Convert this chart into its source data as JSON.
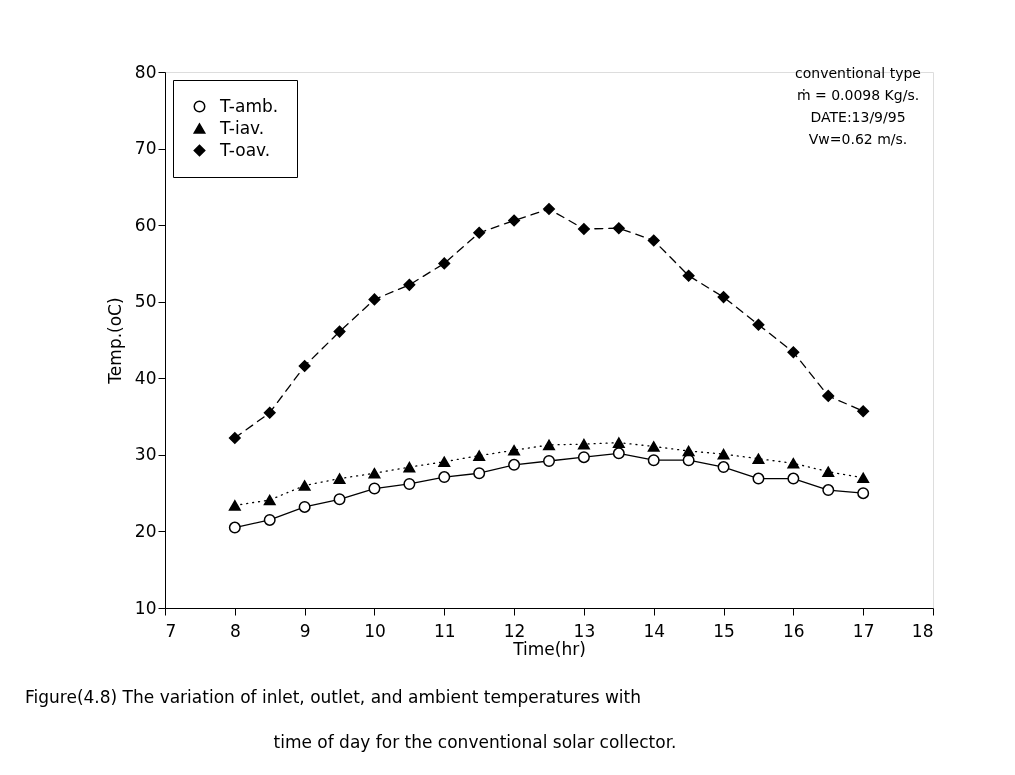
{
  "chart_data": {
    "type": "line",
    "xlabel": "Time(hr)",
    "ylabel": "Temp.(oC)",
    "x": [
      8,
      8.5,
      9,
      9.5,
      10,
      10.5,
      11,
      11.5,
      12,
      12.5,
      13,
      13.5,
      14,
      14.5,
      15,
      15.5,
      16,
      16.5,
      17
    ],
    "series": [
      {
        "name": "T-amb.",
        "color": "#000000",
        "marker": "circle",
        "line_style": "solid",
        "values": [
          20.5,
          21.5,
          23.2,
          24.2,
          25.6,
          26.2,
          27.1,
          27.6,
          28.7,
          29.2,
          29.7,
          30.2,
          29.3,
          29.3,
          28.4,
          26.9,
          26.9,
          25.4,
          25.0
        ]
      },
      {
        "name": "T-iav.",
        "color": "#000000",
        "marker": "triangle",
        "line_style": "dotted",
        "values": [
          23.4,
          24.1,
          26.0,
          26.9,
          27.6,
          28.4,
          29.1,
          29.9,
          30.6,
          31.3,
          31.4,
          31.6,
          31.1,
          30.5,
          30.1,
          29.5,
          28.9,
          27.8,
          27.0
        ]
      },
      {
        "name": "T-oav.",
        "color": "#000000",
        "marker": "diamond",
        "line_style": "dashed",
        "values": [
          32.2,
          35.5,
          41.6,
          46.1,
          50.3,
          52.2,
          55.0,
          59.0,
          60.6,
          62.1,
          59.5,
          59.6,
          58.0,
          53.4,
          50.6,
          47.0,
          43.4,
          37.7,
          35.7
        ]
      }
    ],
    "xlim": [
      7,
      18
    ],
    "xticks": [
      7,
      8,
      9,
      10,
      11,
      12,
      13,
      14,
      15,
      16,
      17,
      18
    ],
    "ylim": [
      10,
      80
    ],
    "yticks": [
      10,
      20,
      30,
      40,
      50,
      60,
      70,
      80
    ],
    "grid": false,
    "legend": "top left",
    "annotations": [
      "conventional type",
      "ṁ = 0.0098 Kg/s.",
      "DATE:13/9/95",
      "Vw=0.62 m/s.",
      "Figure(4.8) The variation of inlet, outlet, and ambient temperatures with time of day for the conventional solar collector."
    ]
  }
}
